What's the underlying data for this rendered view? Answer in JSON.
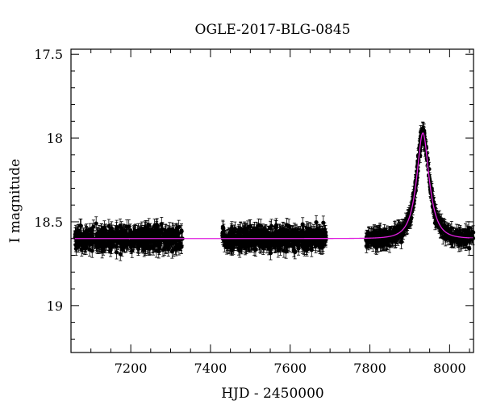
{
  "chart_data": {
    "type": "scatter",
    "title": "OGLE-2017-BLG-0845",
    "xlabel": "HJD - 2450000",
    "ylabel": "I magnitude",
    "xlim": [
      7050,
      8060
    ],
    "ylim": [
      19.28,
      17.47
    ],
    "y_inverted": true,
    "x_ticks": [
      7200,
      7400,
      7600,
      7800,
      8000
    ],
    "y_ticks": [
      17.5,
      18,
      18.5,
      19
    ],
    "y_tick_labels": [
      "17.5",
      "18",
      "18.5",
      "19"
    ],
    "grid": false,
    "series": [
      {
        "kind": "observations-with-errorbars",
        "color": "#000000",
        "seasons": [
          {
            "start": 7060,
            "end": 7330,
            "mean_mag": 18.6,
            "scatter": 0.06,
            "error": 0.04
          },
          {
            "start": 7430,
            "end": 7690,
            "mean_mag": 18.6,
            "scatter": 0.06,
            "error": 0.04
          },
          {
            "start": 7790,
            "end": 8060,
            "mean_mag": "model",
            "scatter": 0.04,
            "error": 0.04
          }
        ]
      },
      {
        "kind": "model",
        "color": "#e020e0",
        "baseline_mag": 18.6,
        "peak_mag": 17.97,
        "peak_time": 7933,
        "tE": 30
      }
    ]
  }
}
